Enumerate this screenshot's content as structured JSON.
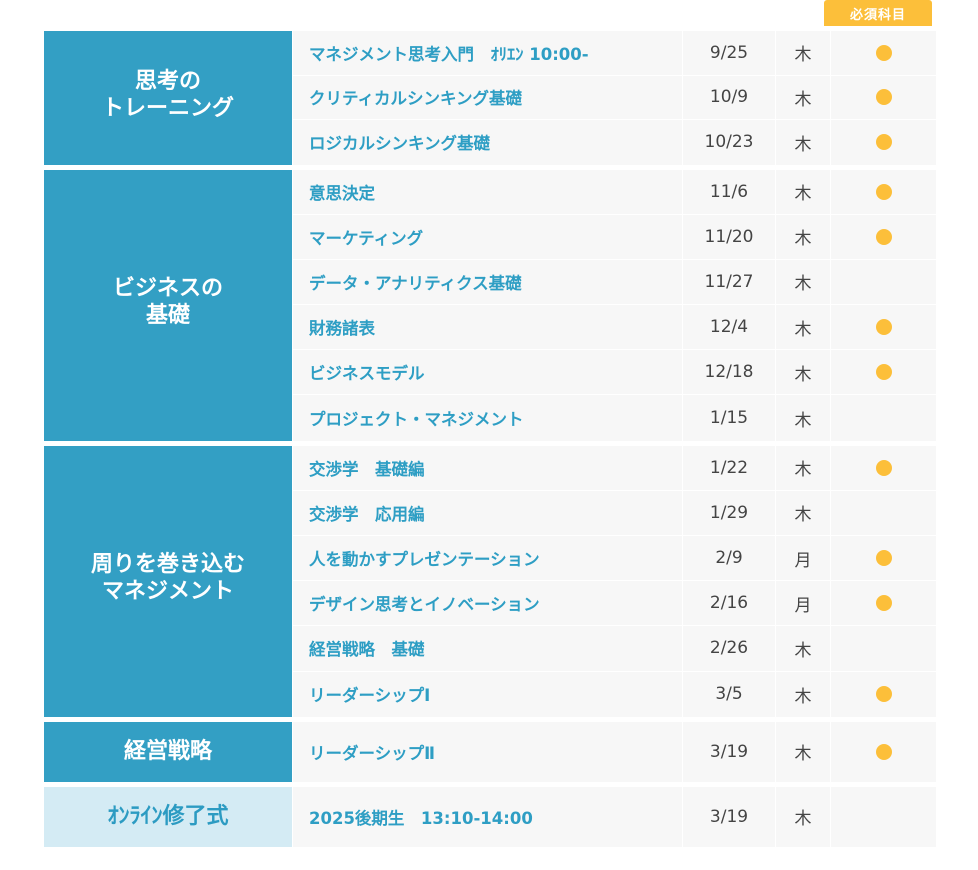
{
  "badge": {
    "label": "必須科目",
    "color": "#fcbf3a"
  },
  "colors": {
    "category_bg": "#339fc4",
    "category_light_bg": "#d4ebf4",
    "course_text": "#2e9ec4",
    "required_dot": "#fcbf3a"
  },
  "groups": [
    {
      "category": "思考の\nトレーニング",
      "rows": [
        {
          "course": "マネジメント思考入門　ｵﾘｴﾝ 10:00-",
          "date": "9/25",
          "day": "木",
          "required": true
        },
        {
          "course": "クリティカルシンキング基礎",
          "date": "10/9",
          "day": "木",
          "required": true
        },
        {
          "course": "ロジカルシンキング基礎",
          "date": "10/23",
          "day": "木",
          "required": true
        }
      ]
    },
    {
      "category": "ビジネスの\n基礎",
      "rows": [
        {
          "course": "意思決定",
          "date": "11/6",
          "day": "木",
          "required": true
        },
        {
          "course": "マーケティング",
          "date": "11/20",
          "day": "木",
          "required": true
        },
        {
          "course": "データ・アナリティクス基礎",
          "date": "11/27",
          "day": "木",
          "required": false
        },
        {
          "course": "財務諸表",
          "date": "12/4",
          "day": "木",
          "required": true
        },
        {
          "course": "ビジネスモデル",
          "date": "12/18",
          "day": "木",
          "required": true
        },
        {
          "course": "プロジェクト・マネジメント",
          "date": "1/15",
          "day": "木",
          "required": false
        }
      ]
    },
    {
      "category": "周りを巻き込む\nマネジメント",
      "rows": [
        {
          "course": "交渉学　基礎編",
          "date": "1/22",
          "day": "木",
          "required": true
        },
        {
          "course": "交渉学　応用編",
          "date": "1/29",
          "day": "木",
          "required": false
        },
        {
          "course": "人を動かすプレゼンテーション",
          "date": "2/9",
          "day": "月",
          "required": true
        },
        {
          "course": "デザイン思考とイノベーション",
          "date": "2/16",
          "day": "月",
          "required": true
        },
        {
          "course": "経営戦略　基礎",
          "date": "2/26",
          "day": "木",
          "required": false
        },
        {
          "course": "リーダーシップⅠ",
          "date": "3/5",
          "day": "木",
          "required": true
        }
      ]
    },
    {
      "category": "経営戦略",
      "rows": [
        {
          "course": "リーダーシップⅡ",
          "date": "3/19",
          "day": "木",
          "required": true
        }
      ]
    },
    {
      "category": "ｵﾝﾗｲﾝ修了式",
      "rows": [
        {
          "course": "2025後期生　13:10-14:00",
          "date": "3/19",
          "day": "木",
          "required": false
        }
      ]
    }
  ]
}
